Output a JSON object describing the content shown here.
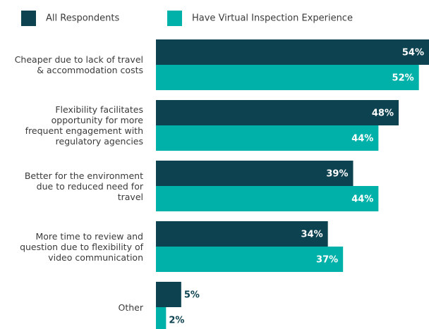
{
  "chart_data": {
    "type": "bar",
    "orientation": "horizontal",
    "categories": [
      "Cheaper due to lack of travel\n& accommodation costs",
      "Flexibility facilitates\nopportunity for more\nfrequent engagement with\nregulatory agencies",
      "Better for the environment\ndue to reduced need for\ntravel",
      "More time to review and\nquestion due to flexibility of\nvideo communication",
      "Other"
    ],
    "series": [
      {
        "name": "All Respondents",
        "color": "#0d4250",
        "values": [
          54,
          48,
          39,
          34,
          5
        ],
        "value_labels": [
          "54%",
          "48%",
          "39%",
          "34%",
          "5%"
        ]
      },
      {
        "name": "Have Virtual Inspection Experience",
        "color": "#00b1a9",
        "values": [
          52,
          44,
          44,
          37,
          2
        ],
        "value_labels": [
          "52%",
          "44%",
          "44%",
          "37%",
          "2%"
        ]
      }
    ],
    "legend": "top"
  }
}
